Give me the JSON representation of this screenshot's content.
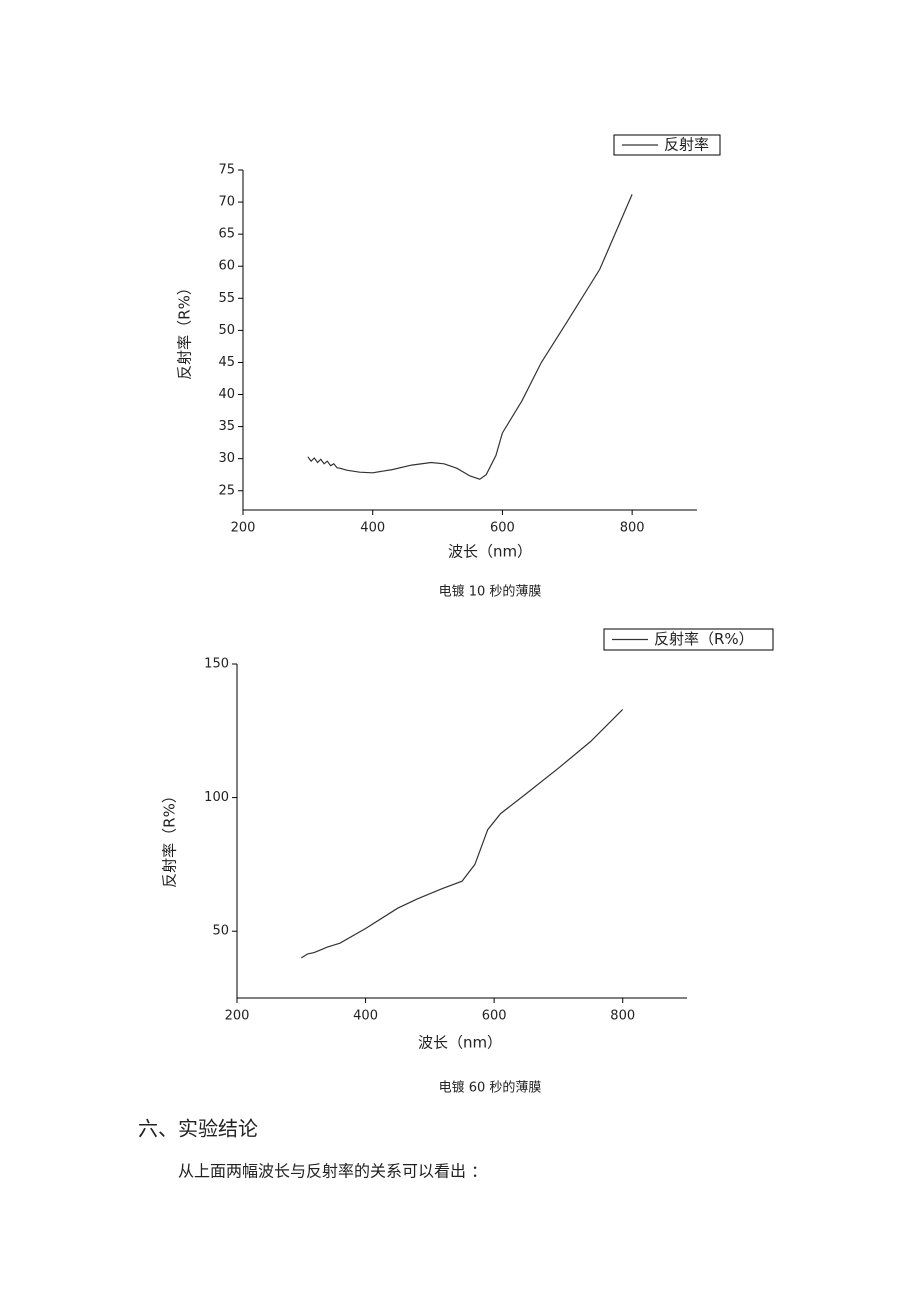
{
  "chart_data": [
    {
      "type": "line",
      "x": [
        300,
        305,
        310,
        315,
        320,
        325,
        330,
        335,
        340,
        345,
        350,
        360,
        380,
        400,
        430,
        460,
        490,
        510,
        530,
        550,
        565,
        575,
        590,
        600,
        630,
        660,
        700,
        750,
        800
      ],
      "series": [
        {
          "name": "反射率",
          "color": "#333333",
          "values": [
            30.3,
            29.6,
            30.1,
            29.4,
            29.9,
            29.2,
            29.6,
            28.9,
            29.2,
            28.6,
            28.5,
            28.2,
            27.9,
            27.8,
            28.3,
            29.0,
            29.4,
            29.2,
            28.5,
            27.3,
            26.8,
            27.5,
            30.5,
            34.0,
            39.0,
            45.0,
            51.4,
            59.5,
            71.2
          ]
        }
      ],
      "x_label": "波长（nm）",
      "y_label": "反射率（R%）",
      "xlim": [
        200,
        900
      ],
      "ylim": [
        22,
        75
      ],
      "xticks": [
        200,
        400,
        600,
        800
      ],
      "yticks": [
        25,
        30,
        35,
        40,
        45,
        50,
        55,
        60,
        65,
        70,
        75
      ]
    },
    {
      "type": "line",
      "x": [
        300,
        310,
        320,
        330,
        340,
        360,
        400,
        450,
        480,
        520,
        550,
        570,
        590,
        610,
        650,
        700,
        750,
        800
      ],
      "series": [
        {
          "name": "反射率（R%）",
          "color": "#333333",
          "values": [
            40.0,
            41.5,
            42.0,
            43.0,
            44.0,
            45.5,
            51.0,
            58.6,
            62.0,
            66.0,
            68.7,
            75.0,
            88.0,
            94.0,
            101.5,
            111.0,
            121.0,
            133.0
          ]
        }
      ],
      "x_label": "波长（nm）",
      "y_label": "反射率（R%）",
      "xlim": [
        200,
        900
      ],
      "ylim": [
        25,
        150
      ],
      "xticks": [
        200,
        400,
        600,
        800
      ],
      "yticks": [
        50,
        100,
        150
      ]
    }
  ],
  "captions": [
    "电镀 10 秒的薄膜",
    "电镀 60 秒的薄膜"
  ],
  "heading": "六、实验结论",
  "paragraph": "从上面两幅波长与反射率的关系可以看出 ："
}
